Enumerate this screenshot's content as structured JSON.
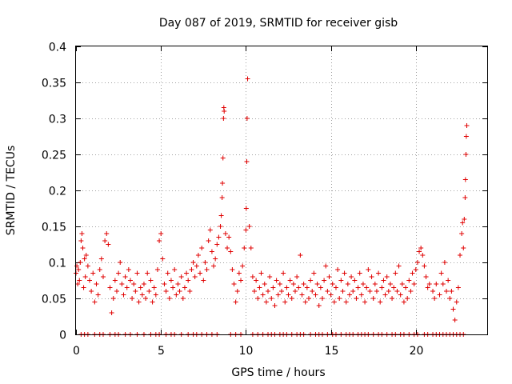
{
  "chart_data": {
    "type": "scatter",
    "title": "Day 087 of 2019, SRMTID for receiver gisb",
    "xlabel": "GPS time / hours",
    "ylabel": "SRMTID / TECUs",
    "xlim": [
      0,
      24.2
    ],
    "ylim": [
      0,
      0.4
    ],
    "x_ticks": [
      0,
      5,
      10,
      15,
      20
    ],
    "x_tick_labels": [
      "0",
      "5",
      "10",
      "15",
      "20"
    ],
    "y_ticks": [
      0,
      0.05,
      0.1,
      0.15,
      0.2,
      0.25,
      0.3,
      0.35,
      0.4
    ],
    "y_tick_labels": [
      "0",
      "0.05",
      "0.1",
      "0.15",
      "0.2",
      "0.25",
      "0.3",
      "0.35",
      "0.4"
    ],
    "grid": true,
    "marker": "plus",
    "color": "#e00000",
    "series": [
      {
        "name": "SRMTID",
        "points": [
          [
            0.0,
            0.085
          ],
          [
            0.05,
            0.095
          ],
          [
            0.1,
            0.07
          ],
          [
            0.15,
            0.09
          ],
          [
            0.2,
            0.075
          ],
          [
            0.25,
            0.1
          ],
          [
            0.3,
            0.13
          ],
          [
            0.35,
            0.14
          ],
          [
            0.4,
            0.12
          ],
          [
            0.45,
            0.065
          ],
          [
            0.5,
            0.105
          ],
          [
            0.55,
            0.08
          ],
          [
            0.6,
            0.11
          ],
          [
            0.7,
            0.095
          ],
          [
            0.8,
            0.075
          ],
          [
            0.9,
            0.06
          ],
          [
            1.0,
            0.085
          ],
          [
            1.1,
            0.045
          ],
          [
            1.2,
            0.07
          ],
          [
            1.3,
            0.055
          ],
          [
            1.4,
            0.09
          ],
          [
            1.5,
            0.105
          ],
          [
            1.6,
            0.08
          ],
          [
            1.7,
            0.13
          ],
          [
            1.8,
            0.14
          ],
          [
            1.9,
            0.125
          ],
          [
            2.0,
            0.065
          ],
          [
            2.1,
            0.03
          ],
          [
            2.2,
            0.05
          ],
          [
            2.3,
            0.075
          ],
          [
            2.4,
            0.06
          ],
          [
            2.5,
            0.085
          ],
          [
            2.6,
            0.1
          ],
          [
            2.7,
            0.07
          ],
          [
            2.8,
            0.055
          ],
          [
            2.9,
            0.08
          ],
          [
            3.0,
            0.065
          ],
          [
            3.1,
            0.09
          ],
          [
            3.2,
            0.075
          ],
          [
            3.3,
            0.05
          ],
          [
            3.4,
            0.07
          ],
          [
            3.5,
            0.06
          ],
          [
            3.6,
            0.085
          ],
          [
            3.7,
            0.045
          ],
          [
            3.8,
            0.065
          ],
          [
            3.9,
            0.055
          ],
          [
            4.0,
            0.07
          ],
          [
            4.1,
            0.05
          ],
          [
            4.2,
            0.085
          ],
          [
            4.3,
            0.06
          ],
          [
            4.4,
            0.075
          ],
          [
            4.5,
            0.045
          ],
          [
            4.6,
            0.065
          ],
          [
            4.7,
            0.055
          ],
          [
            4.8,
            0.09
          ],
          [
            4.9,
            0.13
          ],
          [
            5.0,
            0.14
          ],
          [
            5.1,
            0.105
          ],
          [
            5.2,
            0.07
          ],
          [
            5.3,
            0.06
          ],
          [
            5.4,
            0.085
          ],
          [
            5.5,
            0.05
          ],
          [
            5.6,
            0.075
          ],
          [
            5.7,
            0.065
          ],
          [
            5.8,
            0.09
          ],
          [
            5.9,
            0.055
          ],
          [
            6.0,
            0.07
          ],
          [
            6.1,
            0.06
          ],
          [
            6.2,
            0.08
          ],
          [
            6.3,
            0.05
          ],
          [
            6.4,
            0.065
          ],
          [
            6.5,
            0.085
          ],
          [
            6.6,
            0.075
          ],
          [
            6.7,
            0.06
          ],
          [
            6.8,
            0.09
          ],
          [
            6.9,
            0.1
          ],
          [
            7.0,
            0.08
          ],
          [
            7.1,
            0.095
          ],
          [
            7.2,
            0.11
          ],
          [
            7.3,
            0.085
          ],
          [
            7.4,
            0.12
          ],
          [
            7.5,
            0.075
          ],
          [
            7.6,
            0.1
          ],
          [
            7.7,
            0.09
          ],
          [
            7.8,
            0.13
          ],
          [
            7.9,
            0.145
          ],
          [
            8.0,
            0.115
          ],
          [
            8.1,
            0.095
          ],
          [
            8.2,
            0.105
          ],
          [
            8.3,
            0.125
          ],
          [
            8.4,
            0.135
          ],
          [
            8.5,
            0.15
          ],
          [
            8.55,
            0.165
          ],
          [
            8.6,
            0.19
          ],
          [
            8.62,
            0.21
          ],
          [
            8.65,
            0.245
          ],
          [
            8.68,
            0.3
          ],
          [
            8.7,
            0.315
          ],
          [
            8.72,
            0.31
          ],
          [
            8.8,
            0.14
          ],
          [
            8.9,
            0.12
          ],
          [
            9.0,
            0.135
          ],
          [
            9.1,
            0.115
          ],
          [
            9.2,
            0.09
          ],
          [
            9.3,
            0.07
          ],
          [
            9.4,
            0.045
          ],
          [
            9.5,
            0.06
          ],
          [
            9.6,
            0.085
          ],
          [
            9.7,
            0.075
          ],
          [
            9.8,
            0.095
          ],
          [
            9.9,
            0.12
          ],
          [
            10.0,
            0.145
          ],
          [
            10.02,
            0.175
          ],
          [
            10.05,
            0.24
          ],
          [
            10.07,
            0.3
          ],
          [
            10.1,
            0.355
          ],
          [
            10.2,
            0.15
          ],
          [
            10.3,
            0.12
          ],
          [
            10.4,
            0.08
          ],
          [
            10.5,
            0.06
          ],
          [
            10.6,
            0.075
          ],
          [
            10.7,
            0.05
          ],
          [
            10.8,
            0.065
          ],
          [
            10.9,
            0.085
          ],
          [
            11.0,
            0.055
          ],
          [
            11.1,
            0.07
          ],
          [
            11.2,
            0.045
          ],
          [
            11.3,
            0.06
          ],
          [
            11.4,
            0.08
          ],
          [
            11.5,
            0.05
          ],
          [
            11.6,
            0.065
          ],
          [
            11.7,
            0.04
          ],
          [
            11.8,
            0.075
          ],
          [
            11.9,
            0.055
          ],
          [
            12.0,
            0.07
          ],
          [
            12.1,
            0.06
          ],
          [
            12.2,
            0.085
          ],
          [
            12.3,
            0.045
          ],
          [
            12.4,
            0.065
          ],
          [
            12.5,
            0.055
          ],
          [
            12.6,
            0.075
          ],
          [
            12.7,
            0.05
          ],
          [
            12.8,
            0.07
          ],
          [
            12.9,
            0.06
          ],
          [
            13.0,
            0.08
          ],
          [
            13.1,
            0.065
          ],
          [
            13.2,
            0.11
          ],
          [
            13.3,
            0.055
          ],
          [
            13.4,
            0.07
          ],
          [
            13.5,
            0.045
          ],
          [
            13.6,
            0.065
          ],
          [
            13.7,
            0.05
          ],
          [
            13.8,
            0.075
          ],
          [
            13.9,
            0.06
          ],
          [
            14.0,
            0.085
          ],
          [
            14.1,
            0.055
          ],
          [
            14.2,
            0.07
          ],
          [
            14.3,
            0.04
          ],
          [
            14.4,
            0.065
          ],
          [
            14.5,
            0.05
          ],
          [
            14.6,
            0.075
          ],
          [
            14.7,
            0.095
          ],
          [
            14.8,
            0.06
          ],
          [
            14.9,
            0.08
          ],
          [
            15.0,
            0.055
          ],
          [
            15.1,
            0.07
          ],
          [
            15.2,
            0.045
          ],
          [
            15.3,
            0.065
          ],
          [
            15.4,
            0.09
          ],
          [
            15.5,
            0.05
          ],
          [
            15.6,
            0.075
          ],
          [
            15.7,
            0.06
          ],
          [
            15.8,
            0.085
          ],
          [
            15.9,
            0.045
          ],
          [
            16.0,
            0.07
          ],
          [
            16.1,
            0.055
          ],
          [
            16.2,
            0.08
          ],
          [
            16.3,
            0.06
          ],
          [
            16.4,
            0.075
          ],
          [
            16.5,
            0.05
          ],
          [
            16.6,
            0.065
          ],
          [
            16.7,
            0.085
          ],
          [
            16.8,
            0.055
          ],
          [
            16.9,
            0.07
          ],
          [
            17.0,
            0.045
          ],
          [
            17.1,
            0.065
          ],
          [
            17.2,
            0.09
          ],
          [
            17.3,
            0.06
          ],
          [
            17.4,
            0.08
          ],
          [
            17.5,
            0.05
          ],
          [
            17.6,
            0.07
          ],
          [
            17.7,
            0.06
          ],
          [
            17.8,
            0.085
          ],
          [
            17.9,
            0.045
          ],
          [
            18.0,
            0.065
          ],
          [
            18.1,
            0.075
          ],
          [
            18.2,
            0.055
          ],
          [
            18.3,
            0.08
          ],
          [
            18.4,
            0.06
          ],
          [
            18.5,
            0.07
          ],
          [
            18.6,
            0.05
          ],
          [
            18.7,
            0.065
          ],
          [
            18.8,
            0.085
          ],
          [
            18.9,
            0.06
          ],
          [
            19.0,
            0.095
          ],
          [
            19.1,
            0.055
          ],
          [
            19.2,
            0.07
          ],
          [
            19.3,
            0.045
          ],
          [
            19.4,
            0.065
          ],
          [
            19.5,
            0.05
          ],
          [
            19.6,
            0.075
          ],
          [
            19.7,
            0.06
          ],
          [
            19.8,
            0.085
          ],
          [
            19.9,
            0.07
          ],
          [
            20.0,
            0.09
          ],
          [
            20.1,
            0.1
          ],
          [
            20.2,
            0.115
          ],
          [
            20.3,
            0.12
          ],
          [
            20.4,
            0.11
          ],
          [
            20.5,
            0.095
          ],
          [
            20.6,
            0.08
          ],
          [
            20.7,
            0.065
          ],
          [
            20.8,
            0.07
          ],
          [
            21.0,
            0.06
          ],
          [
            21.1,
            0.05
          ],
          [
            21.2,
            0.07
          ],
          [
            21.4,
            0.055
          ],
          [
            21.5,
            0.085
          ],
          [
            21.6,
            0.07
          ],
          [
            21.7,
            0.1
          ],
          [
            21.8,
            0.06
          ],
          [
            21.9,
            0.075
          ],
          [
            22.0,
            0.05
          ],
          [
            22.1,
            0.06
          ],
          [
            22.2,
            0.035
          ],
          [
            22.3,
            0.02
          ],
          [
            22.4,
            0.045
          ],
          [
            22.5,
            0.065
          ],
          [
            22.6,
            0.11
          ],
          [
            22.7,
            0.14
          ],
          [
            22.75,
            0.155
          ],
          [
            22.8,
            0.12
          ],
          [
            22.85,
            0.16
          ],
          [
            22.9,
            0.19
          ],
          [
            22.92,
            0.215
          ],
          [
            22.95,
            0.25
          ],
          [
            22.97,
            0.275
          ],
          [
            23.0,
            0.29
          ]
        ]
      }
    ],
    "zero_baseline_marks_x": [
      0.3,
      0.5,
      0.7,
      1.1,
      1.4,
      1.6,
      2.0,
      2.3,
      2.5,
      2.9,
      3.2,
      3.6,
      4.0,
      4.4,
      4.7,
      4.9,
      5.3,
      5.6,
      5.8,
      6.2,
      6.6,
      6.9,
      7.1,
      7.4,
      7.7,
      8.0,
      8.3,
      9.1,
      9.4,
      9.7,
      10.4,
      10.7,
      11.0,
      11.3,
      11.5,
      11.7,
      12.0,
      12.2,
      12.4,
      12.7,
      13.0,
      13.2,
      13.4,
      13.8,
      14.1,
      14.3,
      14.5,
      14.8,
      15.1,
      15.3,
      15.6,
      15.9,
      16.1,
      16.3,
      16.6,
      16.8,
      17.0,
      17.2,
      17.5,
      17.8,
      18.0,
      18.3,
      18.6,
      18.8,
      19.1,
      19.3,
      19.6,
      19.9,
      20.1,
      20.5,
      20.7,
      21.0,
      21.2,
      21.4,
      21.6,
      21.8,
      22.0,
      22.2,
      22.4,
      22.6,
      22.8
    ]
  }
}
